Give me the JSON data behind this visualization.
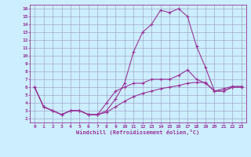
{
  "xlabel": "Windchill (Refroidissement éolien,°C)",
  "background_color": "#cceeff",
  "grid_color": "#9999bb",
  "line_color": "#993399",
  "xlim": [
    -0.5,
    23.5
  ],
  "ylim": [
    1.5,
    16.5
  ],
  "xticks": [
    0,
    1,
    2,
    3,
    4,
    5,
    6,
    7,
    8,
    9,
    10,
    11,
    12,
    13,
    14,
    15,
    16,
    17,
    18,
    19,
    20,
    21,
    22,
    23
  ],
  "yticks": [
    2,
    3,
    4,
    5,
    6,
    7,
    8,
    9,
    10,
    11,
    12,
    13,
    14,
    15,
    16
  ],
  "line1_x": [
    0,
    1,
    2,
    3,
    4,
    5,
    6,
    7,
    8,
    9,
    10,
    11,
    12,
    13,
    14,
    15,
    16,
    17,
    18,
    19,
    20,
    21,
    22,
    23
  ],
  "line1_y": [
    6.0,
    3.5,
    3.0,
    2.5,
    3.0,
    3.0,
    2.5,
    2.5,
    3.0,
    4.5,
    6.5,
    10.5,
    13.0,
    14.0,
    15.8,
    15.5,
    16.0,
    15.0,
    11.2,
    8.5,
    5.5,
    5.5,
    6.0,
    6.0
  ],
  "line2_x": [
    0,
    1,
    2,
    3,
    4,
    5,
    6,
    7,
    8,
    9,
    10,
    11,
    12,
    13,
    14,
    15,
    16,
    17,
    18,
    19,
    20,
    21,
    22,
    23
  ],
  "line2_y": [
    6.0,
    3.5,
    3.0,
    2.5,
    3.0,
    3.0,
    2.5,
    2.5,
    4.0,
    5.5,
    6.0,
    6.5,
    6.5,
    7.0,
    7.0,
    7.0,
    7.5,
    8.2,
    7.0,
    6.5,
    5.5,
    5.5,
    6.0,
    6.0
  ],
  "line3_x": [
    0,
    1,
    2,
    3,
    4,
    5,
    6,
    7,
    8,
    9,
    10,
    11,
    12,
    13,
    14,
    15,
    16,
    17,
    18,
    19,
    20,
    21,
    22,
    23
  ],
  "line3_y": [
    6.0,
    3.5,
    3.0,
    2.5,
    3.0,
    3.0,
    2.5,
    2.5,
    2.8,
    3.5,
    4.2,
    4.8,
    5.2,
    5.5,
    5.8,
    6.0,
    6.2,
    6.5,
    6.6,
    6.6,
    5.5,
    5.8,
    6.1,
    6.1
  ]
}
